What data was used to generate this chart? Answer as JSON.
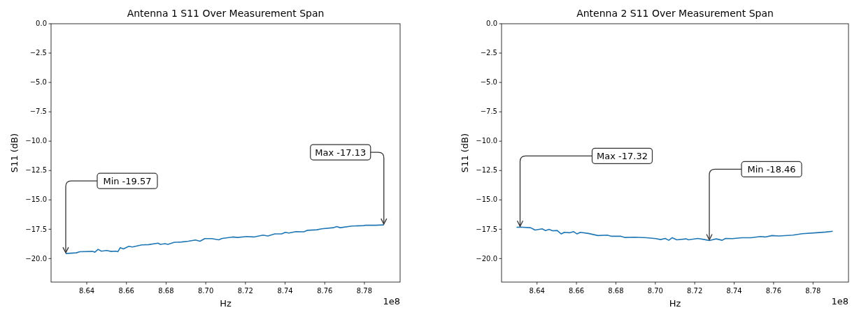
{
  "chart_data": [
    {
      "type": "line",
      "title": "Antenna 1 S11 Over Measurement Span",
      "xlabel": "Hz",
      "ylabel": "S11 (dB)",
      "xlim": [
        8.622,
        8.798
      ],
      "xticks": [
        8.64,
        8.66,
        8.68,
        {
          "value": 8.7,
          "label": "8.70"
        },
        8.72,
        8.74,
        8.76,
        8.78
      ],
      "ylim": [
        -22,
        0
      ],
      "yticks": [
        {
          "value": 0,
          "label": "0.0"
        },
        {
          "value": -2.5,
          "label": "−2.5"
        },
        {
          "value": -5,
          "label": "−5.0"
        },
        {
          "value": -7.5,
          "label": "−7.5"
        },
        {
          "value": -10,
          "label": "−10.0"
        },
        {
          "value": -12.5,
          "label": "−12.5"
        },
        {
          "value": -15,
          "label": "−15.0"
        },
        {
          "value": -17.5,
          "label": "−17.5"
        },
        {
          "value": -20,
          "label": "−20.0"
        }
      ],
      "grid": false,
      "series": [
        {
          "color": "#1f77b4",
          "x": [
            8.6294,
            8.6347,
            8.6365,
            8.6429,
            8.6441,
            8.6457,
            8.6474,
            8.65,
            8.6524,
            8.6547,
            8.6557,
            8.6569,
            8.6585,
            8.6612,
            8.663,
            8.6677,
            8.6712,
            8.6759,
            8.6771,
            8.6795,
            8.6809,
            8.6842,
            8.6877,
            8.6912,
            8.6948,
            8.6971,
            8.6995,
            8.703,
            8.7065,
            8.7083,
            8.7136,
            8.716,
            8.7207,
            8.7242,
            8.7289,
            8.7313,
            8.7348,
            8.7383,
            8.7401,
            8.7419,
            8.7454,
            8.7495,
            8.7513,
            8.756,
            8.7584,
            8.7643,
            8.766,
            8.7678,
            8.7737,
            8.7796,
            8.7807,
            8.7855,
            8.7898
          ],
          "values": [
            -19.57,
            -19.51,
            -19.41,
            -19.39,
            -19.45,
            -19.21,
            -19.37,
            -19.31,
            -19.39,
            -19.37,
            -19.41,
            -19.07,
            -19.17,
            -18.95,
            -19.01,
            -18.83,
            -18.81,
            -18.69,
            -18.79,
            -18.73,
            -18.79,
            -18.61,
            -18.59,
            -18.52,
            -18.42,
            -18.52,
            -18.3,
            -18.3,
            -18.4,
            -18.28,
            -18.16,
            -18.2,
            -18.12,
            -18.16,
            -18.0,
            -18.08,
            -17.9,
            -17.9,
            -17.76,
            -17.82,
            -17.7,
            -17.72,
            -17.59,
            -17.55,
            -17.47,
            -17.37,
            -17.27,
            -17.37,
            -17.23,
            -17.19,
            -17.15,
            -17.16,
            -17.13
          ]
        }
      ],
      "annotations": [
        {
          "text": "Min -19.57",
          "x": 8.6294,
          "y": -19.57
        },
        {
          "text": "Max -17.13",
          "x": 8.7898,
          "y": -17.13
        },
        "1e8"
      ]
    },
    {
      "type": "line",
      "title": "Antenna 2 S11 Over Measurement Span",
      "xlabel": "Hz",
      "ylabel": "S11 (dB)",
      "xlim": [
        8.622,
        8.798
      ],
      "xticks": [
        8.64,
        8.66,
        8.68,
        {
          "value": 8.7,
          "label": "8.70"
        },
        8.72,
        8.74,
        8.76,
        8.78
      ],
      "ylim": [
        -22,
        0
      ],
      "yticks": [
        {
          "value": 0,
          "label": "0.0"
        },
        {
          "value": -2.5,
          "label": "−2.5"
        },
        {
          "value": -5,
          "label": "−5.0"
        },
        {
          "value": -7.5,
          "label": "−7.5"
        },
        {
          "value": -10,
          "label": "−10.0"
        },
        {
          "value": -12.5,
          "label": "−12.5"
        },
        {
          "value": -15,
          "label": "−15.0"
        },
        {
          "value": -17.5,
          "label": "−17.5"
        },
        {
          "value": -20,
          "label": "−20.0"
        }
      ],
      "grid": false,
      "series": [
        {
          "color": "#1f77b4",
          "x": [
            8.6296,
            8.6314,
            8.6367,
            8.639,
            8.6426,
            8.6443,
            8.6461,
            8.6479,
            8.6502,
            8.6523,
            8.6538,
            8.6567,
            8.6585,
            8.6603,
            8.662,
            8.6661,
            8.6709,
            8.6756,
            8.6779,
            8.6826,
            8.6844,
            8.6897,
            8.6956,
            8.7003,
            8.7027,
            8.705,
            8.7068,
            8.7086,
            8.7109,
            8.7156,
            8.7168,
            8.7215,
            8.725,
            8.7274,
            8.7309,
            8.7339,
            8.7356,
            8.7392,
            8.7439,
            8.7486,
            8.7533,
            8.7557,
            8.7592,
            8.7627,
            8.7698,
            8.7745,
            8.7816,
            8.7863,
            8.79
          ],
          "values": [
            -17.33,
            -17.32,
            -17.37,
            -17.57,
            -17.47,
            -17.61,
            -17.51,
            -17.63,
            -17.61,
            -17.9,
            -17.76,
            -17.8,
            -17.7,
            -17.9,
            -17.76,
            -17.86,
            -18.04,
            -18.0,
            -18.1,
            -18.1,
            -18.2,
            -18.18,
            -18.22,
            -18.3,
            -18.38,
            -18.28,
            -18.44,
            -18.22,
            -18.4,
            -18.32,
            -18.4,
            -18.28,
            -18.38,
            -18.46,
            -18.32,
            -18.44,
            -18.28,
            -18.3,
            -18.22,
            -18.22,
            -18.12,
            -18.16,
            -18.04,
            -18.08,
            -18.0,
            -17.88,
            -17.8,
            -17.74,
            -17.67
          ]
        }
      ],
      "annotations": [
        {
          "text": "Max -17.32",
          "x": 8.6314,
          "y": -17.32
        },
        {
          "text": "Min -18.46",
          "x": 8.7274,
          "y": -18.46
        },
        "1e8"
      ]
    }
  ]
}
